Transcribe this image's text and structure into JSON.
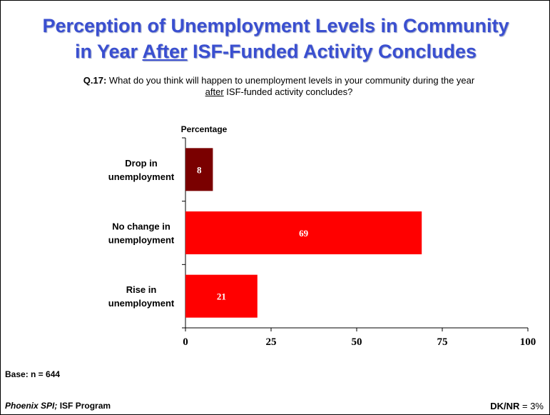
{
  "header": {
    "title_line1": "Perception of Unemployment Levels in Community",
    "title_line2_pre": "in Year ",
    "title_line2_underlined": "After",
    "title_line2_post": " ISF-Funded Activity Concludes"
  },
  "question": {
    "number": "Q.17:",
    "text_line1": " What do you think will happen to unemployment levels in your community during the year",
    "text_line2_underlined": "after",
    "text_line2_rest": " ISF-funded activity concludes?"
  },
  "chart_data": {
    "type": "bar",
    "orientation": "horizontal",
    "xlabel": "Percentage",
    "categories": [
      [
        "Drop in",
        "unemployment"
      ],
      [
        "No change in",
        "unemployment"
      ],
      [
        "Rise in",
        "unemployment"
      ]
    ],
    "values": [
      8,
      69,
      21
    ],
    "colors": [
      "#7a0000",
      "#ff0000",
      "#ff0000"
    ],
    "xlim": [
      0,
      100
    ],
    "xticks": [
      0,
      25,
      50,
      75,
      100
    ],
    "grid": false,
    "data_labels": true
  },
  "footer": {
    "base": "Base: n = 644",
    "source_italic": "Phoenix SPI;",
    "source_rest": " ISF Program",
    "dknr_label": "DK/NR",
    "dknr_value": " = 3%"
  }
}
